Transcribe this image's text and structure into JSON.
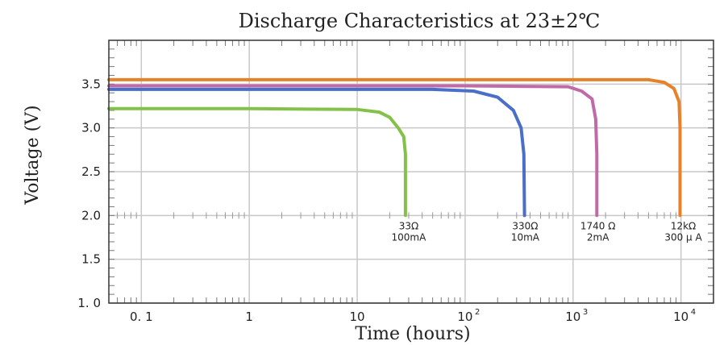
{
  "chart_data": {
    "type": "line",
    "title": "Discharge Characteristics at 23±2℃",
    "xlabel": "Time (hours)",
    "ylabel": "Voltage (V)",
    "xscale": "log",
    "xlim": [
      0.05,
      20000
    ],
    "ylim": [
      1.0,
      4.0
    ],
    "grid": true,
    "x_ticks": [
      {
        "value": 0.1,
        "base": "0. 1",
        "exp": ""
      },
      {
        "value": 1,
        "base": "1",
        "exp": ""
      },
      {
        "value": 10,
        "base": "10",
        "exp": ""
      },
      {
        "value": 100,
        "base": "10",
        "exp": "2"
      },
      {
        "value": 1000,
        "base": "10",
        "exp": "3"
      },
      {
        "value": 10000,
        "base": "10",
        "exp": "4"
      }
    ],
    "y_ticks": [
      {
        "value": 1.0,
        "label": "1. 0"
      },
      {
        "value": 1.5,
        "label": "1.5"
      },
      {
        "value": 2.0,
        "label": "2.0"
      },
      {
        "value": 2.5,
        "label": "2.5"
      },
      {
        "value": 3.0,
        "label": "3.0"
      },
      {
        "value": 3.5,
        "label": "3.5"
      }
    ],
    "series": [
      {
        "color": "#84c14a",
        "label_lines": [
          "33Ω",
          "100mA"
        ],
        "label_at": [
          30,
          1.97
        ],
        "points": [
          [
            0.05,
            3.22
          ],
          [
            1,
            3.22
          ],
          [
            10,
            3.21
          ],
          [
            16,
            3.18
          ],
          [
            20,
            3.12
          ],
          [
            24,
            3.0
          ],
          [
            27,
            2.9
          ],
          [
            28,
            2.7
          ],
          [
            28,
            2.0
          ]
        ]
      },
      {
        "color": "#4a6fc8",
        "label_lines": [
          "330Ω",
          "10mA"
        ],
        "label_at": [
          360,
          1.97
        ],
        "points": [
          [
            0.05,
            3.44
          ],
          [
            1,
            3.44
          ],
          [
            50,
            3.44
          ],
          [
            120,
            3.42
          ],
          [
            200,
            3.35
          ],
          [
            280,
            3.2
          ],
          [
            330,
            3.0
          ],
          [
            350,
            2.7
          ],
          [
            355,
            2.0
          ]
        ]
      },
      {
        "color": "#c06aa8",
        "label_lines": [
          "1740 Ω",
          "2mA"
        ],
        "label_at": [
          1700,
          1.97
        ],
        "points": [
          [
            0.05,
            3.48
          ],
          [
            100,
            3.48
          ],
          [
            900,
            3.47
          ],
          [
            1200,
            3.42
          ],
          [
            1500,
            3.33
          ],
          [
            1620,
            3.1
          ],
          [
            1660,
            2.7
          ],
          [
            1660,
            2.0
          ]
        ]
      },
      {
        "color": "#e8822a",
        "label_lines": [
          "12kΩ",
          "300 μ A"
        ],
        "label_at": [
          10500,
          1.97
        ],
        "points": [
          [
            0.05,
            3.55
          ],
          [
            1000,
            3.55
          ],
          [
            5000,
            3.55
          ],
          [
            7000,
            3.52
          ],
          [
            8600,
            3.45
          ],
          [
            9600,
            3.3
          ],
          [
            9800,
            3.0
          ],
          [
            9800,
            2.0
          ]
        ]
      }
    ]
  }
}
